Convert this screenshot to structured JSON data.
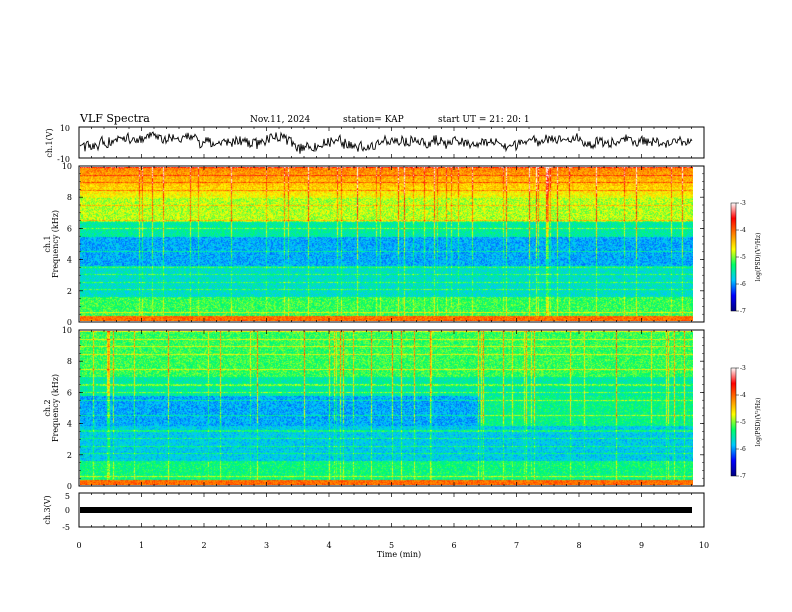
{
  "chart_data": {
    "type": "heatmap",
    "title": "VLF Spectra",
    "date": "Nov.11, 2024",
    "station": "station= KAP",
    "start_time": "start  UT =   21: 20: 1",
    "xlabel": "Time (min)",
    "xlim": [
      0,
      10
    ],
    "x_ticks": [
      "0",
      "1",
      "2",
      "3",
      "4",
      "5",
      "6",
      "7",
      "8",
      "9",
      "10"
    ],
    "panels": [
      {
        "type": "line",
        "ylabel": "ch.1(V)",
        "ylim": [
          -10,
          10
        ],
        "y_ticks": [
          "10",
          "-10"
        ],
        "series_color": "#000000"
      },
      {
        "type": "heatmap",
        "ylabel_channel": "ch.1",
        "ylabel": "Frequency (kHz)",
        "ylim": [
          0,
          10
        ],
        "y_ticks": [
          "0",
          "2",
          "4",
          "6",
          "8",
          "10"
        ],
        "colorbar": {
          "label": "log(PSD)(V²/Hz)",
          "range": [
            -7,
            -3
          ],
          "ticks": [
            "-3",
            "-4",
            "-5",
            "-6",
            "-7"
          ],
          "colors": [
            "#000080",
            "#0000ff",
            "#00c8ff",
            "#00ff66",
            "#ffff00",
            "#ff8000",
            "#ff0000",
            "#ffffff"
          ]
        }
      },
      {
        "type": "heatmap",
        "ylabel_channel": "ch.2",
        "ylabel": "Frequency (kHz)",
        "ylim": [
          0,
          10
        ],
        "y_ticks": [
          "0",
          "2",
          "4",
          "6",
          "8",
          "10"
        ],
        "colorbar": {
          "label": "log(PSD)(V²/Hz)",
          "range": [
            -7,
            -3
          ],
          "ticks": [
            "-3",
            "-4",
            "-5",
            "-6",
            "-7"
          ],
          "colors": [
            "#000080",
            "#0000ff",
            "#00c8ff",
            "#00ff66",
            "#ffff00",
            "#ff8000",
            "#ff0000",
            "#ffffff"
          ]
        }
      },
      {
        "type": "line",
        "ylabel": "ch.3(V)",
        "ylim": [
          -5,
          5
        ],
        "y_ticks": [
          "5",
          "0",
          "-5"
        ],
        "series_color": "#000000"
      }
    ]
  }
}
